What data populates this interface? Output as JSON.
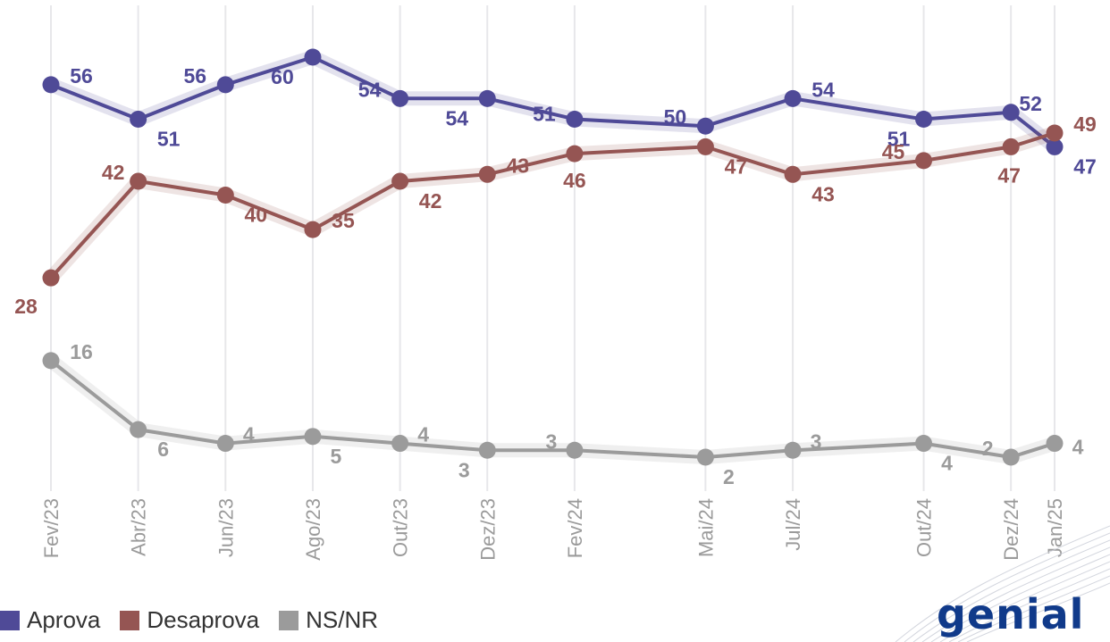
{
  "colors": {
    "aprova": "#4f4a97",
    "desaprova": "#955553",
    "nsnr": "#9b9b9b",
    "brand": "#103a8a"
  },
  "legend": {
    "items": [
      {
        "label": "Aprova",
        "color": "#4f4a97"
      },
      {
        "label": "Desaprova",
        "color": "#955553"
      },
      {
        "label": "NS/NR",
        "color": "#9b9b9b"
      }
    ]
  },
  "brand": {
    "text": "genial",
    "icon": "genial-logo-icon"
  },
  "chart_data": {
    "type": "line",
    "categories": [
      "Fev/23",
      "Abr/23",
      "Jun/23",
      "Ago/23",
      "Out/23",
      "Dez/23",
      "Fev/24",
      "Mai/24",
      "Jul/24",
      "Out/24",
      "Dez/24",
      "Jan/25"
    ],
    "ylim": [
      0,
      65
    ],
    "grid": "vertical",
    "legend_position": "bottom-left",
    "series": [
      {
        "name": "Aprova",
        "color": "#4f4a97",
        "values": [
          56,
          51,
          56,
          60,
          54,
          54,
          51,
          50,
          54,
          51,
          52,
          47
        ]
      },
      {
        "name": "Desaprova",
        "color": "#955553",
        "values": [
          28,
          42,
          40,
          35,
          42,
          43,
          46,
          47,
          43,
          45,
          47,
          49
        ]
      },
      {
        "name": "NS/NR",
        "color": "#9b9b9b",
        "values": [
          16,
          6,
          4,
          5,
          4,
          3,
          3,
          2,
          3,
          4,
          2,
          4
        ]
      }
    ]
  }
}
